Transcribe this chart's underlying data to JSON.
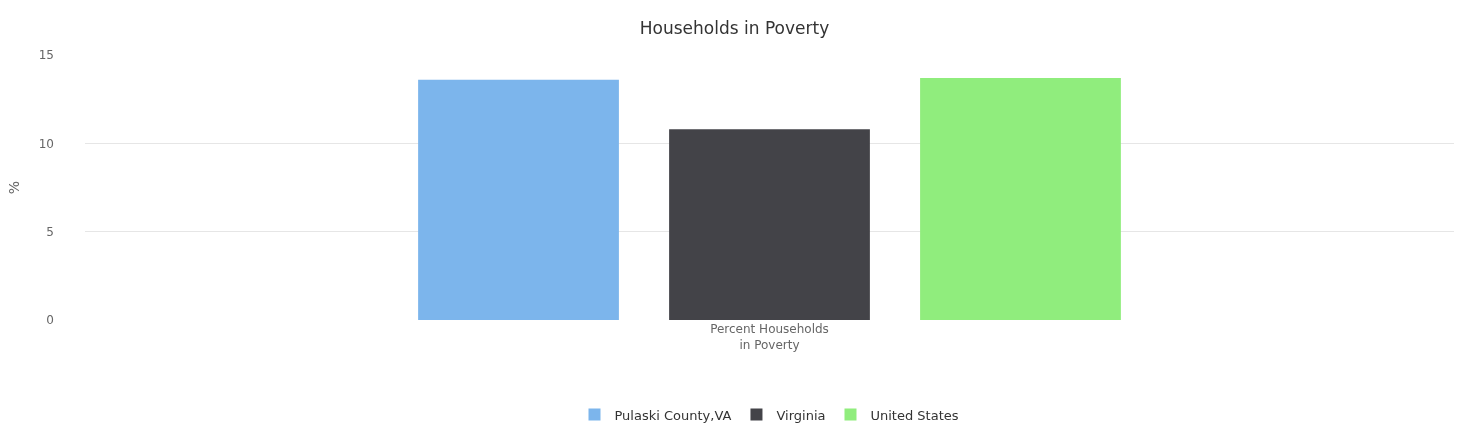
{
  "chart_data": {
    "type": "bar",
    "title": "Households in Poverty",
    "ylabel": "%",
    "categories": [
      "Percent Households in Poverty"
    ],
    "series": [
      {
        "name": "Pulaski County,VA",
        "color": "#7cb5ec",
        "values": [
          13.6
        ]
      },
      {
        "name": "Virginia",
        "color": "#434348",
        "values": [
          10.8
        ]
      },
      {
        "name": "United States",
        "color": "#90ed7d",
        "values": [
          13.7
        ]
      }
    ],
    "ylim": [
      0,
      15
    ],
    "yticks": [
      0,
      5,
      10,
      15
    ],
    "grid": "y",
    "legend": "bottom"
  }
}
